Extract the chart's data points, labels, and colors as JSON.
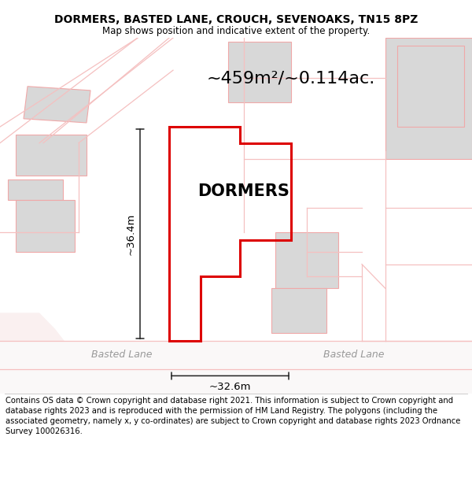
{
  "title": "DORMERS, BASTED LANE, CROUCH, SEVENOAKS, TN15 8PZ",
  "subtitle": "Map shows position and indicative extent of the property.",
  "area_label": "~459m²/~0.114ac.",
  "property_label": "DORMERS",
  "dim_vertical": "~36.4m",
  "dim_horizontal": "~32.6m",
  "road_label_left": "Basted Lane",
  "road_label_right": "Basted Lane",
  "copyright_text": "Contains OS data © Crown copyright and database right 2021. This information is subject to Crown copyright and database rights 2023 and is reproduced with the permission of HM Land Registry. The polygons (including the associated geometry, namely x, y co-ordinates) are subject to Crown copyright and database rights 2023 Ordnance Survey 100026316.",
  "map_bg": "#ffffff",
  "building_fill": "#d8d8d8",
  "building_edge_color": "#f0a8a8",
  "property_edge_color": "#dd0000",
  "road_fill": "#f0e8e8",
  "title_fontsize": 10,
  "subtitle_fontsize": 8.5,
  "label_fontsize": 15,
  "area_fontsize": 16,
  "road_fontsize": 9,
  "copyright_fontsize": 7.2,
  "dim_fontsize": 9.5
}
